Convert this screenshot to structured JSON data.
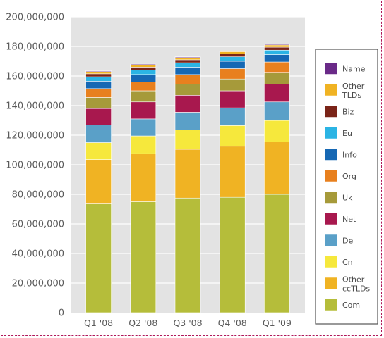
{
  "chart_data": {
    "type": "bar",
    "stacked": true,
    "title": "",
    "xlabel": "",
    "ylabel": "",
    "ylim": [
      0,
      200000000
    ],
    "y_ticks": [
      "0",
      "20,000,000",
      "40,000,000",
      "60,000,000",
      "80,000,000",
      "100,000,000",
      "120,000,000",
      "140,000,000",
      "160,000,000",
      "180,000,000",
      "200,000,000"
    ],
    "grid": true,
    "legend_position": "right",
    "categories": [
      "Q1 '08",
      "Q2 '08",
      "Q3 '08",
      "Q4 '08",
      "Q1 '09"
    ],
    "series": [
      {
        "name": "Com",
        "color": "#b5bd3a",
        "values": [
          74000000,
          75000000,
          77500000,
          78000000,
          80000000
        ]
      },
      {
        "name": "Other ccTLDs",
        "color": "#f0b323",
        "values": [
          29500000,
          32500000,
          33000000,
          34500000,
          35500000
        ]
      },
      {
        "name": "Cn",
        "color": "#f6e83c",
        "values": [
          11500000,
          12000000,
          13000000,
          14000000,
          14500000
        ]
      },
      {
        "name": "De",
        "color": "#5aa0c8",
        "values": [
          12000000,
          11500000,
          12000000,
          12000000,
          12500000
        ]
      },
      {
        "name": "Net",
        "color": "#a8184e",
        "values": [
          11000000,
          11500000,
          11500000,
          11500000,
          12000000
        ]
      },
      {
        "name": "Uk",
        "color": "#a69a3a",
        "values": [
          7500000,
          7500000,
          7500000,
          8000000,
          8000000
        ]
      },
      {
        "name": "Org",
        "color": "#e8801e",
        "values": [
          6000000,
          6000000,
          6500000,
          7000000,
          7000000
        ]
      },
      {
        "name": "Info",
        "color": "#1668b4",
        "values": [
          5000000,
          5000000,
          5000000,
          5000000,
          5000000
        ]
      },
      {
        "name": "Eu",
        "color": "#2bb4e4",
        "values": [
          3000000,
          3000000,
          3000000,
          3000000,
          3000000
        ]
      },
      {
        "name": "Biz",
        "color": "#7a2418",
        "values": [
          2000000,
          2000000,
          2000000,
          2000000,
          2000000
        ]
      },
      {
        "name": "Other TLDs",
        "color": "#f0b323",
        "values": [
          1500000,
          1500000,
          1500000,
          1500000,
          1500000
        ]
      },
      {
        "name": "Name",
        "color": "#6a2a88",
        "values": [
          500000,
          500000,
          500000,
          500000,
          500000
        ]
      }
    ],
    "legend_order": [
      "Name",
      "Other TLDs",
      "Biz",
      "Eu",
      "Info",
      "Org",
      "Uk",
      "Net",
      "De",
      "Cn",
      "Other ccTLDs",
      "Com"
    ]
  }
}
